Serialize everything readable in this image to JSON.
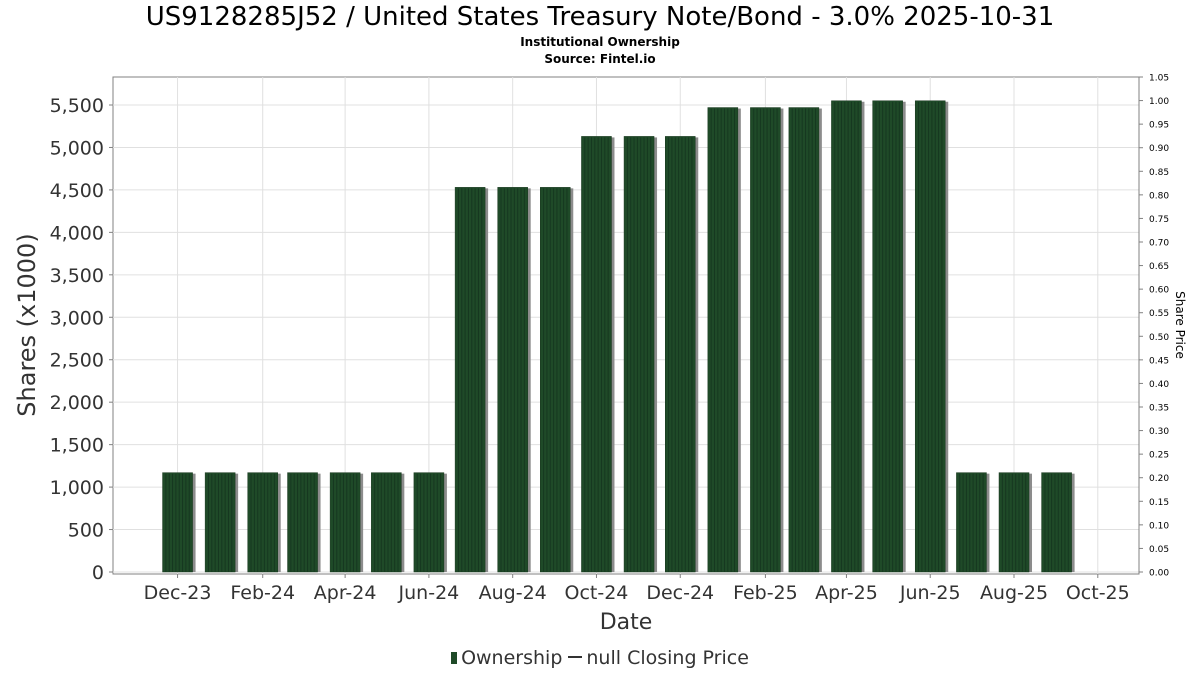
{
  "chart_data": {
    "type": "bar",
    "title": "US9128285J52 / United States Treasury Note/Bond - 3.0% 2025-10-31",
    "subtitle": "Institutional Ownership",
    "source": "Source: Fintel.io",
    "xlabel": "Date",
    "ylabel": "Shares (x1000)",
    "y2label": "Share Price",
    "ylim": [
      0,
      5800
    ],
    "y2lim": [
      0,
      1.05
    ],
    "y_ticks": [
      0,
      500,
      1000,
      1500,
      2000,
      2500,
      3000,
      3500,
      4000,
      4500,
      5000,
      5500
    ],
    "y_tick_labels": [
      "0",
      "500",
      "1,000",
      "1,500",
      "2,000",
      "2,500",
      "3,000",
      "3,500",
      "4,000",
      "4,500",
      "5,000",
      "5,500"
    ],
    "y2_ticks": [
      0.0,
      0.05,
      0.1,
      0.15,
      0.2,
      0.25,
      0.3,
      0.35,
      0.4,
      0.45,
      0.5,
      0.55,
      0.6,
      0.65,
      0.7,
      0.75,
      0.8,
      0.85,
      0.9,
      0.95,
      1.0,
      1.05
    ],
    "y2_tick_labels": [
      "0.00",
      "0.05",
      "0.10",
      "0.15",
      "0.20",
      "0.25",
      "0.30",
      "0.35",
      "0.40",
      "0.45",
      "0.50",
      "0.55",
      "0.60",
      "0.65",
      "0.70",
      "0.75",
      "0.80",
      "0.85",
      "0.90",
      "0.95",
      "1.00",
      "1.05"
    ],
    "x_ticks": [
      "2023-12-01",
      "2024-02-01",
      "2024-04-01",
      "2024-06-01",
      "2024-08-01",
      "2024-10-01",
      "2024-12-01",
      "2025-02-01",
      "2025-04-01",
      "2025-06-01",
      "2025-08-01",
      "2025-10-01"
    ],
    "x_tick_labels": [
      "Dec-23",
      "Feb-24",
      "Apr-24",
      "Jun-24",
      "Aug-24",
      "Oct-24",
      "Dec-24",
      "Feb-25",
      "Apr-25",
      "Jun-25",
      "Aug-25",
      "Oct-25"
    ],
    "xlim": [
      "2023-10-15",
      "2025-10-31"
    ],
    "grid": true,
    "legend_position": "bottom",
    "colors": {
      "bar": "#1f4a28",
      "bar_shadow": "#8c8c8c",
      "grid": "#e0e0e0",
      "axis": "#808080"
    },
    "series": [
      {
        "name": "Ownership",
        "type": "bar",
        "dates": [
          "2023-12-01",
          "2024-01-01",
          "2024-02-01",
          "2024-03-01",
          "2024-04-01",
          "2024-05-01",
          "2024-06-01",
          "2024-07-01",
          "2024-08-01",
          "2024-09-01",
          "2024-10-01",
          "2024-11-01",
          "2024-12-01",
          "2025-01-01",
          "2025-02-01",
          "2025-03-01",
          "2025-04-01",
          "2025-05-01",
          "2025-06-01",
          "2025-07-01",
          "2025-08-01",
          "2025-09-01"
        ],
        "values": [
          1170,
          1170,
          1170,
          1170,
          1170,
          1170,
          1170,
          4530,
          4530,
          4530,
          5130,
          5130,
          5130,
          5470,
          5470,
          5470,
          5550,
          5550,
          5550,
          1170,
          1170,
          1170
        ]
      },
      {
        "name": "null Closing Price",
        "type": "line",
        "values": []
      }
    ]
  }
}
